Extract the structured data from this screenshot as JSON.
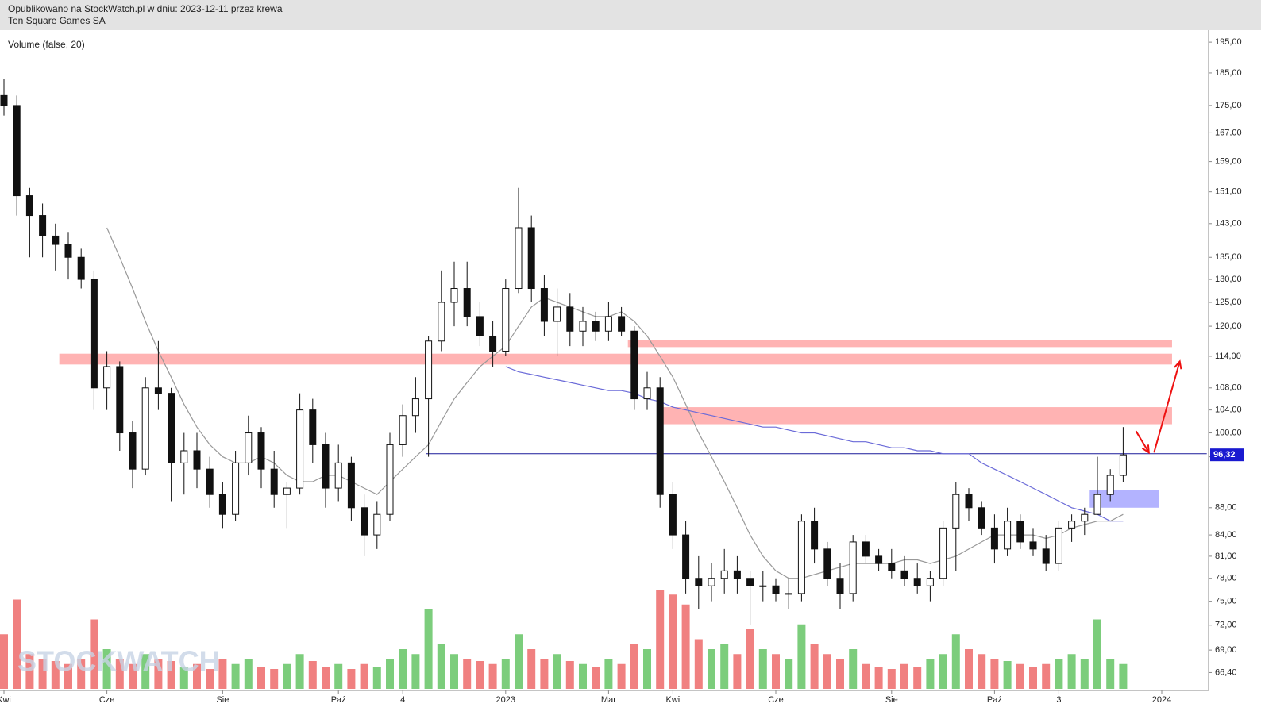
{
  "header": {
    "published": "Opublikowano na StockWatch.pl w dniu: 2023-12-11 przez krewa",
    "instrument": "Ten Square Games SA"
  },
  "watermark": "STOCKWATCH",
  "chart_data": {
    "type": "candlestick",
    "indicator": "Volume (false, 20)",
    "log_scale": true,
    "ylim": [
      64.4,
      198.5
    ],
    "yticks": [
      {
        "value": 195,
        "label": "195,00"
      },
      {
        "value": 185,
        "label": "185,00"
      },
      {
        "value": 175,
        "label": "175,00"
      },
      {
        "value": 167,
        "label": "167,00"
      },
      {
        "value": 159,
        "label": "159,00"
      },
      {
        "value": 151,
        "label": "151,00"
      },
      {
        "value": 143,
        "label": "143,00"
      },
      {
        "value": 135,
        "label": "135,00"
      },
      {
        "value": 130,
        "label": "130,00"
      },
      {
        "value": 125,
        "label": "125,00"
      },
      {
        "value": 120,
        "label": "120,00"
      },
      {
        "value": 114,
        "label": "114,00"
      },
      {
        "value": 108,
        "label": "108,00"
      },
      {
        "value": 104,
        "label": "104,00"
      },
      {
        "value": 100,
        "label": "100,00"
      },
      {
        "value": 96,
        "label": "96,00"
      },
      {
        "value": 88,
        "label": "88,00"
      },
      {
        "value": 84,
        "label": "84,00"
      },
      {
        "value": 81,
        "label": "81,00"
      },
      {
        "value": 78,
        "label": "78,00"
      },
      {
        "value": 75,
        "label": "75,00"
      },
      {
        "value": 72,
        "label": "72,00"
      },
      {
        "value": 69,
        "label": "69,00"
      },
      {
        "value": 66.4,
        "label": "66,40"
      }
    ],
    "categories": [
      "Kwi",
      null,
      null,
      null,
      null,
      null,
      null,
      null,
      "Cze",
      null,
      null,
      null,
      null,
      null,
      null,
      null,
      null,
      "Sie",
      null,
      null,
      null,
      null,
      null,
      null,
      null,
      null,
      "Paź",
      null,
      null,
      null,
      null,
      "4",
      null,
      null,
      null,
      null,
      null,
      null,
      null,
      "2023",
      null,
      null,
      null,
      null,
      null,
      null,
      null,
      "Mar",
      null,
      null,
      null,
      null,
      "Kwi",
      null,
      null,
      null,
      null,
      null,
      null,
      null,
      "Cze",
      null,
      null,
      null,
      null,
      null,
      null,
      null,
      null,
      "Sie",
      null,
      null,
      null,
      null,
      null,
      null,
      null,
      "Paź",
      null,
      null,
      null,
      null,
      "3",
      null,
      null,
      null,
      null,
      null,
      null,
      null,
      "2024",
      null,
      null,
      null
    ],
    "open": [
      178,
      175,
      150,
      145,
      140,
      138,
      135,
      130,
      108,
      112,
      100,
      94,
      108,
      107,
      95,
      97,
      94,
      90,
      87,
      95,
      100,
      94,
      90,
      91,
      104,
      98,
      91,
      95,
      88,
      84,
      87,
      98,
      103,
      106,
      117,
      125,
      128,
      122,
      118,
      115,
      128,
      142,
      128,
      121,
      124,
      119,
      121,
      119,
      122,
      119,
      106,
      108,
      90,
      84,
      78,
      77,
      78,
      79,
      78,
      77,
      77,
      76,
      76,
      86,
      82,
      78,
      76,
      83,
      81,
      80,
      79,
      78,
      77,
      78,
      85,
      90,
      88,
      85,
      82,
      86,
      83,
      82,
      80,
      85,
      86,
      87,
      90,
      93,
      null,
      null,
      null,
      null,
      null,
      null
    ],
    "high": [
      183,
      178,
      152,
      148,
      143,
      141,
      137,
      132,
      115,
      113,
      102,
      110,
      117,
      108,
      100,
      100,
      96,
      92,
      97,
      103,
      101,
      97,
      92,
      107,
      106,
      100,
      98,
      96,
      90,
      89,
      100,
      105,
      110,
      118,
      132,
      134,
      134,
      125,
      121,
      130,
      152,
      145,
      131,
      128,
      127,
      124,
      123,
      125,
      124,
      120,
      111,
      110,
      92,
      86,
      81,
      80,
      82,
      81,
      79,
      79,
      78,
      78,
      87,
      88,
      83,
      80,
      84,
      84,
      82,
      82,
      81,
      80,
      79,
      86,
      92,
      91,
      89,
      87,
      88,
      87,
      85,
      84,
      86,
      87,
      88,
      96,
      94,
      101,
      null,
      null,
      null,
      null,
      null,
      null
    ],
    "low": [
      172,
      145,
      135,
      135,
      132,
      130,
      128,
      104,
      104,
      97,
      91,
      93,
      104,
      89,
      90,
      91,
      88,
      85,
      86,
      93,
      91,
      88,
      85,
      90,
      95,
      88,
      89,
      86,
      81,
      82,
      86,
      96,
      100,
      96,
      115,
      120,
      120,
      116,
      112,
      114,
      127,
      125,
      118,
      114,
      116,
      116,
      117,
      117,
      118,
      104,
      104,
      88,
      82,
      76,
      74,
      75,
      76,
      76,
      72,
      75,
      75,
      74,
      75,
      80,
      77,
      74,
      75,
      80,
      79,
      78,
      77,
      76,
      75,
      77,
      79,
      86,
      84,
      80,
      81,
      82,
      81,
      79,
      79,
      83,
      84,
      87,
      89,
      92,
      null,
      null,
      null,
      null,
      null,
      null
    ],
    "close": [
      175,
      150,
      145,
      140,
      138,
      135,
      130,
      108,
      112,
      100,
      94,
      108,
      107,
      95,
      97,
      94,
      90,
      87,
      95,
      100,
      94,
      90,
      91,
      104,
      98,
      91,
      95,
      88,
      84,
      87,
      98,
      103,
      106,
      117,
      125,
      128,
      122,
      118,
      115,
      128,
      142,
      128,
      121,
      124,
      119,
      121,
      119,
      122,
      119,
      106,
      108,
      90,
      84,
      78,
      77,
      78,
      79,
      78,
      77,
      77,
      76,
      76,
      86,
      82,
      78,
      76,
      83,
      81,
      80,
      79,
      78,
      77,
      78,
      85,
      90,
      88,
      85,
      82,
      86,
      83,
      82,
      80,
      85,
      86,
      87,
      90,
      93,
      96.32,
      null,
      null,
      null,
      null,
      null,
      null
    ],
    "last_price": {
      "value": 96.32,
      "label": "96,32"
    },
    "up_color": "#7ccd7c",
    "down_color": "#f08080",
    "candle_color": "#111111",
    "volume": [
      55,
      90,
      35,
      30,
      28,
      25,
      30,
      70,
      40,
      30,
      25,
      35,
      30,
      28,
      22,
      25,
      20,
      30,
      25,
      30,
      22,
      20,
      25,
      35,
      28,
      22,
      25,
      20,
      25,
      22,
      30,
      40,
      35,
      80,
      45,
      35,
      30,
      28,
      25,
      30,
      55,
      40,
      30,
      35,
      28,
      25,
      22,
      30,
      25,
      45,
      40,
      100,
      95,
      85,
      50,
      40,
      45,
      35,
      60,
      40,
      35,
      30,
      65,
      45,
      35,
      30,
      40,
      25,
      22,
      20,
      25,
      22,
      30,
      35,
      55,
      40,
      35,
      30,
      28,
      25,
      22,
      25,
      30,
      35,
      30,
      70,
      30,
      25,
      null,
      null,
      null,
      null,
      null,
      null
    ],
    "lines": [
      {
        "color": "#999999",
        "values": [
          null,
          null,
          null,
          null,
          null,
          null,
          null,
          null,
          142,
          135,
          128,
          121,
          115,
          110,
          105,
          101,
          98,
          96,
          95,
          95,
          96,
          95,
          93,
          92,
          92,
          93,
          93,
          92,
          91,
          90,
          92,
          94,
          96,
          98,
          102,
          106,
          109,
          112,
          114,
          116,
          120,
          124,
          126,
          125,
          124,
          123,
          122,
          122,
          123,
          121,
          118,
          114,
          110,
          105,
          100,
          96,
          92,
          88,
          84,
          81,
          79,
          78,
          78,
          78.5,
          79,
          79.5,
          80,
          80,
          80,
          80,
          80.5,
          80.5,
          80,
          80.5,
          81,
          82,
          83,
          84,
          84,
          84,
          84,
          83.5,
          84,
          85,
          85.5,
          86,
          86,
          87,
          null,
          null,
          null,
          null,
          null,
          null
        ]
      },
      {
        "color": "#6a6ad8",
        "values": [
          null,
          null,
          null,
          null,
          null,
          null,
          null,
          null,
          null,
          null,
          null,
          null,
          null,
          null,
          null,
          null,
          null,
          null,
          null,
          null,
          null,
          null,
          null,
          null,
          null,
          null,
          null,
          null,
          null,
          null,
          null,
          null,
          null,
          null,
          null,
          null,
          null,
          null,
          null,
          112,
          111,
          110.5,
          110,
          109.5,
          109,
          108.5,
          108,
          107.5,
          107.5,
          107,
          106,
          105.5,
          104.5,
          104,
          103.5,
          103,
          102.5,
          102,
          101.5,
          101,
          101,
          100.5,
          100,
          100,
          99.5,
          99,
          98.5,
          98.5,
          98,
          97.5,
          97.5,
          97,
          97,
          96.5,
          96.5,
          96.5,
          95,
          94,
          93,
          92,
          91,
          90,
          89,
          88,
          87.5,
          87,
          86,
          86,
          null,
          null,
          null,
          null,
          null,
          null
        ]
      }
    ],
    "zones": [
      {
        "x": [
          4.3,
          90.8
        ],
        "y": [
          112.4,
          114.5
        ],
        "color": "#ffb3b3"
      },
      {
        "x": [
          48.5,
          90.8
        ],
        "y": [
          115.8,
          117.2
        ],
        "color": "#ffb3b3"
      },
      {
        "x": [
          51.1,
          90.8
        ],
        "y": [
          101.5,
          104.5
        ],
        "color": "#ffb3b3"
      },
      {
        "x": [
          84.4,
          89.8
        ],
        "y": [
          88.0,
          90.7
        ],
        "color": "#b3b3ff"
      }
    ],
    "hline": {
      "x": [
        32.8,
        93.5
      ],
      "y": 96.5,
      "color": "#1a1a9a"
    },
    "arrows": [
      {
        "x": [
          88.0,
          89.0
        ],
        "y": [
          100.3,
          96.7
        ],
        "color": "#ee1111"
      },
      {
        "x": [
          89.4,
          91.4
        ],
        "y": [
          96.7,
          113.0
        ],
        "color": "#ee1111"
      }
    ]
  }
}
